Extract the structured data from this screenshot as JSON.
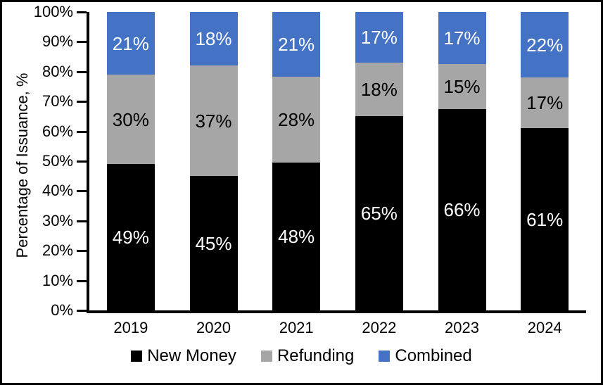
{
  "frame": {
    "background": "#ffffff",
    "border_color": "#000000"
  },
  "chart_data": {
    "type": "bar",
    "subtype": "stacked-100-percent",
    "title": "",
    "xlabel": "",
    "ylabel": "Percentage of Issuance, %",
    "ylim": [
      0,
      100
    ],
    "grid": false,
    "legend_position": "bottom",
    "categories": [
      "2019",
      "2020",
      "2021",
      "2022",
      "2023",
      "2024"
    ],
    "series": [
      {
        "name": "New Money",
        "color": "#000000",
        "label_color": "#ffffff",
        "values": [
          49,
          45,
          48,
          65,
          66,
          61
        ],
        "labels": [
          "49%",
          "45%",
          "48%",
          "65%",
          "66%",
          "61%"
        ]
      },
      {
        "name": "Refunding",
        "color": "#a6a6a6",
        "label_color": "#000000",
        "values": [
          30,
          37,
          28,
          18,
          15,
          17
        ],
        "labels": [
          "30%",
          "37%",
          "28%",
          "18%",
          "15%",
          "17%"
        ]
      },
      {
        "name": "Combined",
        "color": "#4472c4",
        "label_color": "#ffffff",
        "values": [
          21,
          18,
          21,
          17,
          17,
          22
        ],
        "labels": [
          "21%",
          "18%",
          "21%",
          "17%",
          "17%",
          "22%"
        ]
      }
    ],
    "yticks": [
      {
        "value": 0,
        "label": "0%"
      },
      {
        "value": 10,
        "label": "10%"
      },
      {
        "value": 20,
        "label": "20%"
      },
      {
        "value": 30,
        "label": "30%"
      },
      {
        "value": 40,
        "label": "40%"
      },
      {
        "value": 50,
        "label": "50%"
      },
      {
        "value": 60,
        "label": "60%"
      },
      {
        "value": 70,
        "label": "70%"
      },
      {
        "value": 80,
        "label": "80%"
      },
      {
        "value": 90,
        "label": "90%"
      },
      {
        "value": 100,
        "label": "100%"
      }
    ]
  }
}
